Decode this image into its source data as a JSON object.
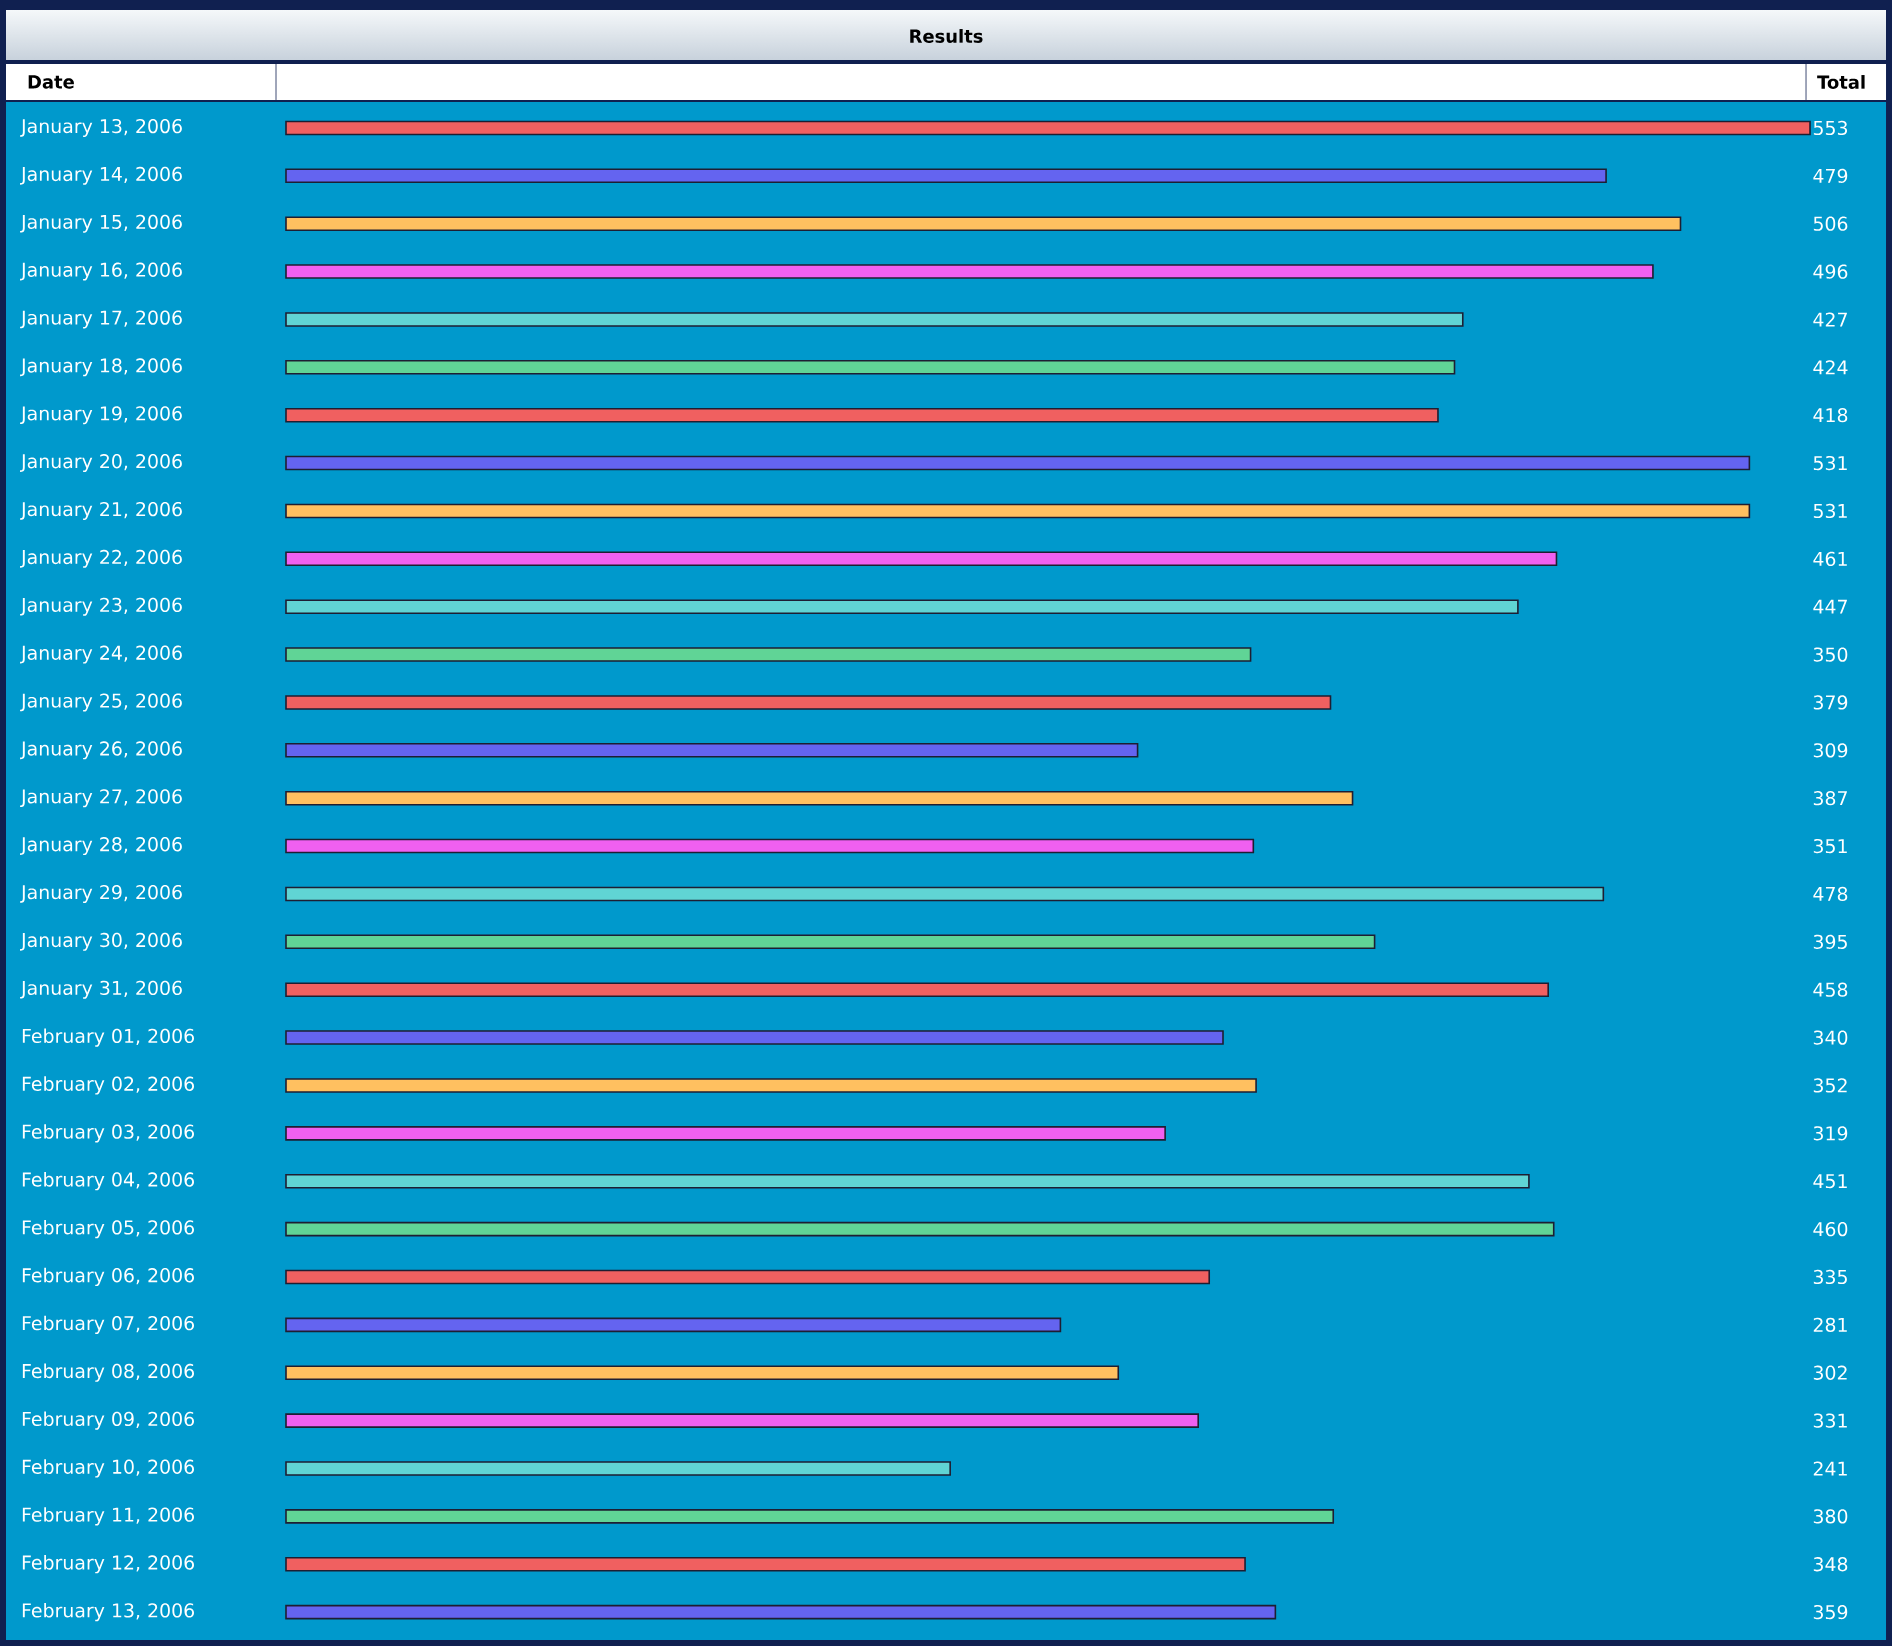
{
  "chart_data": {
    "type": "bar",
    "orientation": "horizontal",
    "title": "Results",
    "ylabel": "Date",
    "xlabel": "Total",
    "categories": [
      "January 13, 2006",
      "January 14, 2006",
      "January 15, 2006",
      "January 16, 2006",
      "January 17, 2006",
      "January 18, 2006",
      "January 19, 2006",
      "January 20, 2006",
      "January 21, 2006",
      "January 22, 2006",
      "January 23, 2006",
      "January 24, 2006",
      "January 25, 2006",
      "January 26, 2006",
      "January 27, 2006",
      "January 28, 2006",
      "January 29, 2006",
      "January 30, 2006",
      "January 31, 2006",
      "February 01, 2006",
      "February 02, 2006",
      "February 03, 2006",
      "February 04, 2006",
      "February 05, 2006",
      "February 06, 2006",
      "February 07, 2006",
      "February 08, 2006",
      "February 09, 2006",
      "February 10, 2006",
      "February 11, 2006",
      "February 12, 2006",
      "February 13, 2006"
    ],
    "values": [
      553,
      479,
      506,
      496,
      427,
      424,
      418,
      531,
      531,
      461,
      447,
      350,
      379,
      309,
      387,
      351,
      478,
      395,
      458,
      340,
      352,
      319,
      451,
      460,
      335,
      281,
      302,
      331,
      241,
      380,
      348,
      359
    ],
    "colors": [
      "#f06060",
      "#6464f0",
      "#ffc060",
      "#f060f0",
      "#60d4d4",
      "#60d496",
      "#f06060",
      "#6464f0",
      "#ffc060",
      "#f060f0",
      "#60d4d4",
      "#60d496",
      "#f06060",
      "#6464f0",
      "#ffc060",
      "#f060f0",
      "#60d4d4",
      "#60d496",
      "#f06060",
      "#6464f0",
      "#ffc060",
      "#f060f0",
      "#60d4d4",
      "#60d496",
      "#f06060",
      "#6464f0",
      "#ffc060",
      "#f060f0",
      "#60d4d4",
      "#60d496",
      "#f06060",
      "#6464f0"
    ],
    "data_labels": true
  }
}
